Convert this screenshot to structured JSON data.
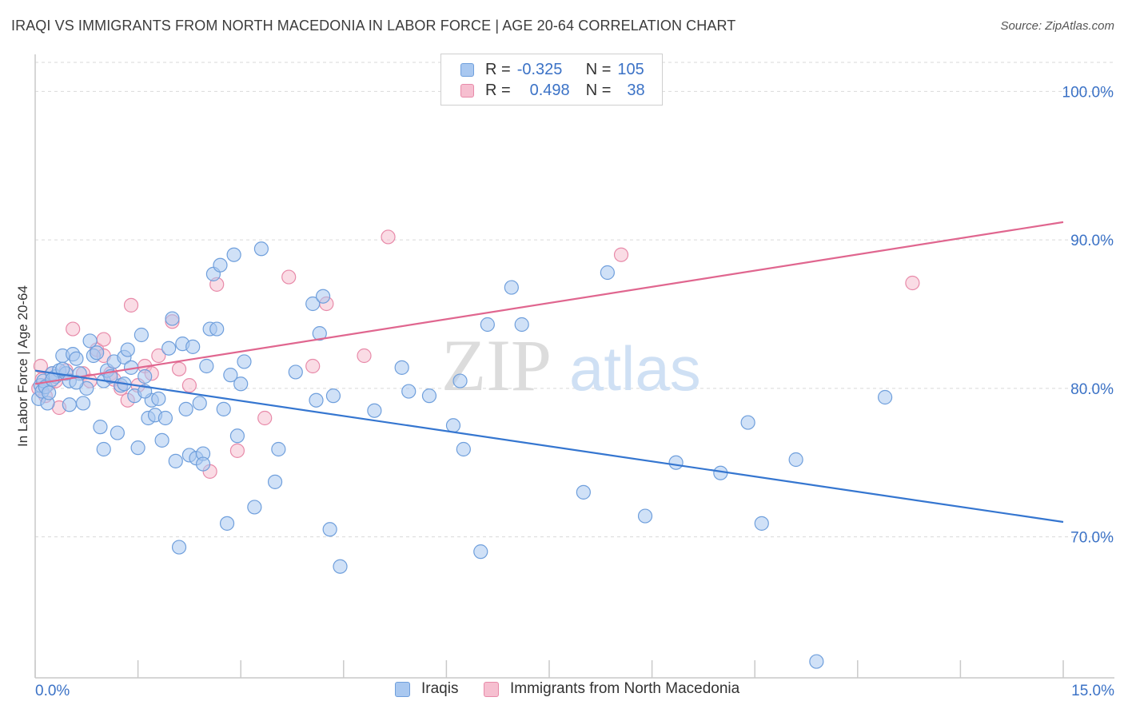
{
  "title": "IRAQI VS IMMIGRANTS FROM NORTH MACEDONIA IN LABOR FORCE | AGE 20-64 CORRELATION CHART",
  "source": "Source: ZipAtlas.com",
  "watermark": {
    "zip": "ZIP",
    "atlas": "atlas"
  },
  "legend": {
    "iraqis": {
      "r_label": "R =",
      "r_value": "-0.325",
      "n_label": "N =",
      "n_value": "105"
    },
    "macedonia": {
      "r_label": "R =",
      "r_value": "0.498",
      "n_label": "N =",
      "n_value": "38"
    }
  },
  "colors": {
    "blue_fill": "#a9c8f0",
    "blue_stroke": "#6f9fdc",
    "blue_line": "#3576d0",
    "pink_fill": "#f6bfd0",
    "pink_stroke": "#e88aa9",
    "pink_line": "#e0668f",
    "axis_text": "#3b72c6",
    "grid": "#d9d9d9"
  },
  "chart_data": {
    "type": "scatter",
    "xlabel": "",
    "ylabel": "In Labor Force | Age 20-64",
    "xlim": [
      0,
      15
    ],
    "ylim": [
      60.5,
      102.5
    ],
    "x_tick_labels": [
      "0.0%",
      "15.0%"
    ],
    "y_ticks": [
      70,
      80,
      90,
      100
    ],
    "y_tick_labels": [
      "70.0%",
      "80.0%",
      "90.0%",
      "100.0%"
    ],
    "grid": true,
    "series": [
      {
        "name": "Iraqis",
        "trend": {
          "x": [
            0,
            15
          ],
          "y": [
            81.2,
            71.0
          ]
        },
        "points": [
          [
            0.05,
            79.3
          ],
          [
            0.08,
            80.2
          ],
          [
            0.1,
            79.8
          ],
          [
            0.12,
            80.5
          ],
          [
            0.15,
            80.1
          ],
          [
            0.18,
            79.0
          ],
          [
            0.2,
            79.7
          ],
          [
            0.25,
            81.0
          ],
          [
            0.3,
            80.8
          ],
          [
            0.35,
            81.2
          ],
          [
            0.4,
            82.2
          ],
          [
            0.45,
            81.0
          ],
          [
            0.5,
            80.5
          ],
          [
            0.55,
            82.3
          ],
          [
            0.6,
            82.0
          ],
          [
            0.65,
            81.0
          ],
          [
            0.7,
            79.0
          ],
          [
            0.75,
            80.0
          ],
          [
            0.8,
            83.2
          ],
          [
            0.85,
            82.2
          ],
          [
            0.9,
            82.4
          ],
          [
            0.95,
            77.4
          ],
          [
            1.0,
            80.5
          ],
          [
            1.05,
            81.2
          ],
          [
            1.1,
            80.8
          ],
          [
            1.15,
            81.8
          ],
          [
            1.2,
            77.0
          ],
          [
            1.25,
            80.2
          ],
          [
            1.3,
            82.1
          ],
          [
            1.35,
            82.6
          ],
          [
            1.4,
            81.4
          ],
          [
            1.45,
            79.5
          ],
          [
            1.5,
            76.0
          ],
          [
            1.55,
            83.6
          ],
          [
            1.6,
            80.8
          ],
          [
            1.65,
            78.0
          ],
          [
            1.7,
            79.2
          ],
          [
            1.75,
            78.2
          ],
          [
            1.8,
            79.3
          ],
          [
            1.85,
            76.5
          ],
          [
            1.9,
            78.0
          ],
          [
            1.95,
            82.7
          ],
          [
            2.0,
            84.7
          ],
          [
            2.05,
            75.1
          ],
          [
            2.1,
            69.3
          ],
          [
            2.15,
            83.0
          ],
          [
            2.2,
            78.6
          ],
          [
            2.25,
            75.5
          ],
          [
            2.3,
            82.8
          ],
          [
            2.35,
            75.3
          ],
          [
            2.4,
            79.0
          ],
          [
            2.45,
            75.6
          ],
          [
            2.5,
            81.5
          ],
          [
            2.55,
            84.0
          ],
          [
            2.6,
            87.7
          ],
          [
            2.65,
            84.0
          ],
          [
            2.7,
            88.3
          ],
          [
            2.75,
            78.6
          ],
          [
            2.8,
            70.9
          ],
          [
            2.85,
            80.9
          ],
          [
            2.9,
            89.0
          ],
          [
            2.95,
            76.8
          ],
          [
            3.0,
            80.3
          ],
          [
            3.05,
            81.8
          ],
          [
            3.2,
            72.0
          ],
          [
            3.3,
            89.4
          ],
          [
            3.5,
            73.7
          ],
          [
            3.55,
            75.9
          ],
          [
            3.8,
            81.1
          ],
          [
            4.05,
            85.7
          ],
          [
            4.1,
            79.2
          ],
          [
            4.15,
            83.7
          ],
          [
            4.2,
            86.2
          ],
          [
            4.3,
            70.5
          ],
          [
            4.35,
            79.5
          ],
          [
            4.45,
            68.0
          ],
          [
            4.95,
            78.5
          ],
          [
            5.35,
            81.4
          ],
          [
            5.45,
            79.8
          ],
          [
            5.75,
            79.5
          ],
          [
            6.1,
            77.5
          ],
          [
            6.2,
            80.5
          ],
          [
            6.25,
            75.9
          ],
          [
            6.5,
            69.0
          ],
          [
            6.6,
            84.3
          ],
          [
            6.95,
            86.8
          ],
          [
            7.1,
            84.3
          ],
          [
            8.0,
            73.0
          ],
          [
            8.35,
            87.8
          ],
          [
            8.9,
            71.4
          ],
          [
            9.35,
            75.0
          ],
          [
            10.0,
            74.3
          ],
          [
            10.4,
            77.7
          ],
          [
            10.6,
            70.9
          ],
          [
            11.1,
            75.2
          ],
          [
            11.4,
            61.6
          ],
          [
            12.4,
            79.4
          ],
          [
            0.5,
            78.9
          ],
          [
            1.0,
            75.9
          ],
          [
            1.3,
            80.3
          ],
          [
            0.25,
            80.6
          ],
          [
            0.4,
            81.3
          ],
          [
            2.45,
            74.9
          ],
          [
            0.6,
            80.4
          ],
          [
            1.6,
            79.8
          ]
        ]
      },
      {
        "name": "Immigrants from North Macedonia",
        "trend": {
          "x": [
            0,
            15
          ],
          "y": [
            80.3,
            91.2
          ]
        },
        "points": [
          [
            0.05,
            80.0
          ],
          [
            0.08,
            81.5
          ],
          [
            0.1,
            80.6
          ],
          [
            0.15,
            79.5
          ],
          [
            0.2,
            80.3
          ],
          [
            0.25,
            81.0
          ],
          [
            0.3,
            80.5
          ],
          [
            0.35,
            78.7
          ],
          [
            0.45,
            81.2
          ],
          [
            0.55,
            84.0
          ],
          [
            0.7,
            81.0
          ],
          [
            0.8,
            80.5
          ],
          [
            0.9,
            82.6
          ],
          [
            1.0,
            82.2
          ],
          [
            1.1,
            81.0
          ],
          [
            1.15,
            80.6
          ],
          [
            1.25,
            80.0
          ],
          [
            1.35,
            79.2
          ],
          [
            1.5,
            80.2
          ],
          [
            1.6,
            81.5
          ],
          [
            1.7,
            81.0
          ],
          [
            1.8,
            82.2
          ],
          [
            2.0,
            84.5
          ],
          [
            2.1,
            81.3
          ],
          [
            2.25,
            80.2
          ],
          [
            2.55,
            74.4
          ],
          [
            2.65,
            87.0
          ],
          [
            2.95,
            75.8
          ],
          [
            3.35,
            78.0
          ],
          [
            3.7,
            87.5
          ],
          [
            4.05,
            81.5
          ],
          [
            4.25,
            85.7
          ],
          [
            4.8,
            82.2
          ],
          [
            5.15,
            90.2
          ],
          [
            1.4,
            85.6
          ],
          [
            1.0,
            83.3
          ],
          [
            8.55,
            89.0
          ],
          [
            12.8,
            87.1
          ]
        ]
      }
    ]
  },
  "bottom_legend": {
    "iraqis": "Iraqis",
    "macedonia": "Immigrants from North Macedonia"
  }
}
